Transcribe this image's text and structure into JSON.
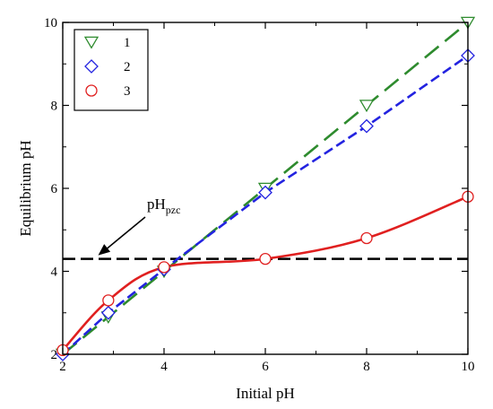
{
  "chart_data": {
    "type": "line",
    "xlabel": "Initial pH",
    "ylabel": "Equilibrium pH",
    "xlim": [
      2,
      10
    ],
    "ylim": [
      2,
      10
    ],
    "xticks": [
      2,
      4,
      6,
      8,
      10
    ],
    "yticks": [
      2,
      4,
      6,
      8,
      10
    ],
    "grid": false,
    "legend_position": "top-left",
    "series": [
      {
        "name": "1",
        "marker": "triangle-down",
        "color": "#2e8b2e",
        "line_style": "long-dash",
        "x": [
          2,
          2.9,
          4,
          6,
          8,
          10
        ],
        "y": [
          2.0,
          2.9,
          4.0,
          6.0,
          8.0,
          10.0
        ]
      },
      {
        "name": "2",
        "marker": "diamond",
        "color": "#2323e0",
        "line_style": "dash",
        "x": [
          2,
          2.9,
          4,
          6,
          8,
          10
        ],
        "y": [
          2.0,
          3.0,
          4.05,
          5.9,
          7.5,
          9.2
        ]
      },
      {
        "name": "3",
        "marker": "circle",
        "color": "#e02020",
        "line_style": "solid",
        "x": [
          2,
          2.9,
          4,
          6,
          8,
          10
        ],
        "y": [
          2.1,
          3.3,
          4.1,
          4.3,
          4.8,
          5.8
        ]
      }
    ],
    "reference_line": {
      "y": 4.3,
      "color": "#000000",
      "line_style": "dash"
    },
    "annotation": {
      "text_main": "pH",
      "text_sub": "pzc",
      "arrow_to": {
        "x": 2.7,
        "y": 4.3
      }
    }
  }
}
